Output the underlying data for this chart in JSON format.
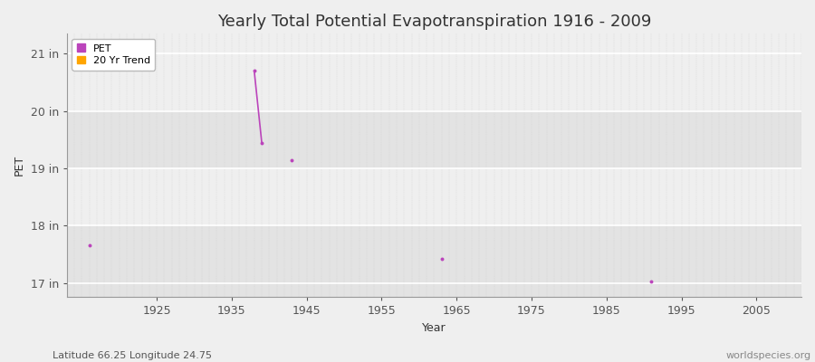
{
  "title": "Yearly Total Potential Evapotranspiration 1916 - 2009",
  "xlabel": "Year",
  "ylabel": "PET",
  "xlim": [
    1913,
    2011
  ],
  "ylim": [
    16.75,
    21.35
  ],
  "yticks": [
    17,
    18,
    19,
    20,
    21
  ],
  "ytick_labels": [
    "17 in",
    "18 in",
    "19 in",
    "20 in",
    "21 in"
  ],
  "xticks": [
    1925,
    1935,
    1945,
    1955,
    1965,
    1975,
    1985,
    1995,
    2005
  ],
  "pet_points": [
    [
      1916,
      17.65
    ],
    [
      1938,
      20.7
    ],
    [
      1939,
      19.45
    ],
    [
      1943,
      19.15
    ],
    [
      1963,
      17.42
    ],
    [
      1991,
      17.02
    ]
  ],
  "pet_line_segments": [
    [
      [
        1938,
        20.7
      ],
      [
        1939,
        19.45
      ]
    ]
  ],
  "pet_color": "#BB44BB",
  "trend_color": "#FFA500",
  "background_color": "#EFEFEF",
  "band_light": "#EFEFEF",
  "band_dark": "#E3E3E3",
  "hline_color": "#FFFFFF",
  "grid_color": "#CCCCCC",
  "footer_left": "Latitude 66.25 Longitude 24.75",
  "footer_right": "worldspecies.org",
  "legend_entries": [
    "PET",
    "20 Yr Trend"
  ],
  "legend_colors": [
    "#BB44BB",
    "#FFA500"
  ],
  "title_fontsize": 13,
  "axis_label_fontsize": 9,
  "tick_fontsize": 9,
  "footer_fontsize": 8
}
